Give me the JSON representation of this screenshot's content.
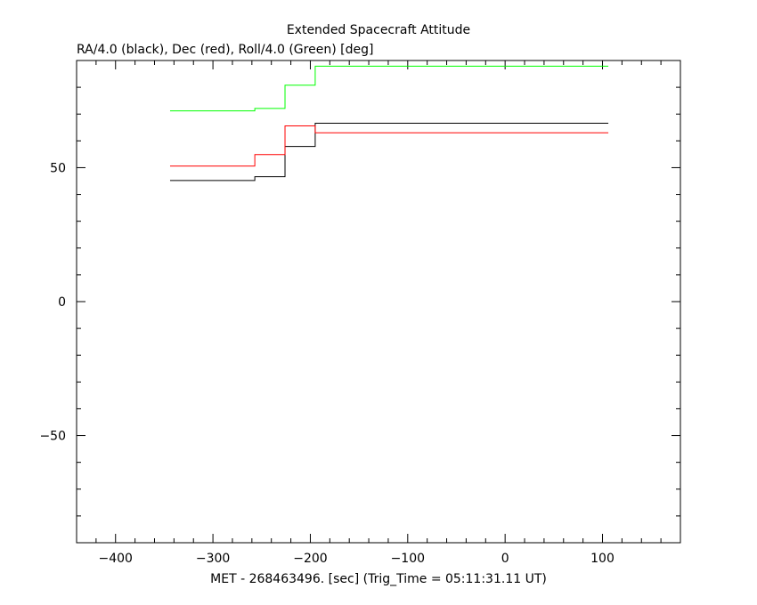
{
  "chart_data": {
    "type": "line",
    "step": true,
    "title": "Extended Spacecraft Attitude",
    "subtitle": "RA/4.0 (black), Dec (red), Roll/4.0 (Green) [deg]",
    "xlabel": "MET - 268463496. [sec] (Trig_Time = 05:11:31.11 UT)",
    "ylabel": "",
    "xlim": [
      -440,
      180
    ],
    "ylim": [
      -90,
      90
    ],
    "xticks": [
      -400,
      -300,
      -200,
      -100,
      0,
      100
    ],
    "yticks": [
      -50,
      0,
      50
    ],
    "x_minor_step": 20,
    "y_minor_step": 10,
    "grid": false,
    "series": [
      {
        "name": "",
        "color": "#000000",
        "x": [
          -344,
          -257,
          -226,
          -195,
          106
        ],
        "y": [
          45.2,
          46.6,
          57.9,
          66.6,
          66.6
        ]
      },
      {
        "name": "",
        "color": "#ff0000",
        "x": [
          -344,
          -257,
          -226,
          -195,
          106
        ],
        "y": [
          50.6,
          54.9,
          65.6,
          63.0,
          63.0
        ]
      },
      {
        "name": "",
        "color": "#00ff00",
        "x": [
          -344,
          -257,
          -226,
          -195,
          106
        ],
        "y": [
          71.2,
          72.1,
          80.8,
          87.9,
          87.9
        ]
      }
    ]
  }
}
